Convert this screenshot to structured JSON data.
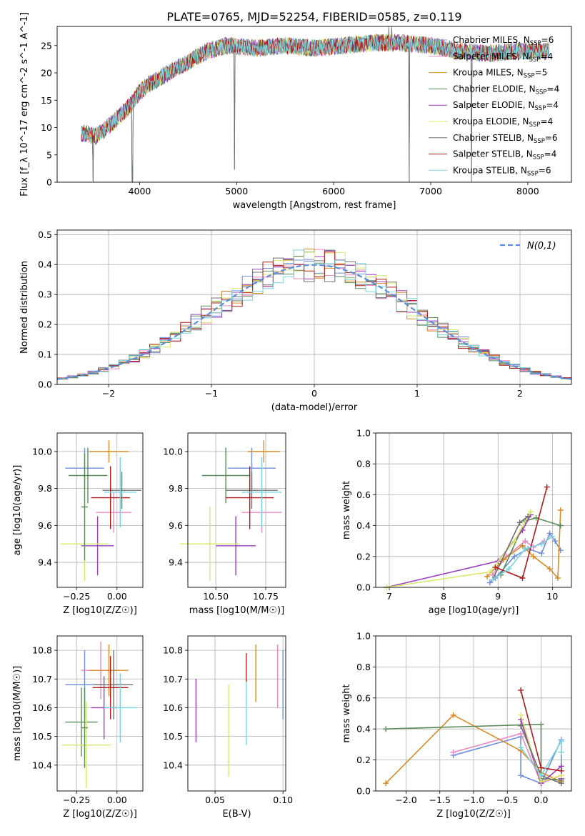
{
  "title": "PLATE=0765, MJD=52254, FIBERID=0585, z=0.119",
  "legend_models": [
    {
      "name": "Chabrier MILES",
      "nssp": "6",
      "color": "#6f8fdc"
    },
    {
      "name": "Salpeter MILES",
      "nssp": "4",
      "color": "#e889c4"
    },
    {
      "name": "Kroupa MILES",
      "nssp": "5",
      "color": "#d98b26"
    },
    {
      "name": "Chabrier ELODIE",
      "nssp": "4",
      "color": "#5b8a5b"
    },
    {
      "name": "Salpeter ELODIE",
      "nssp": "4",
      "color": "#9b3fbf"
    },
    {
      "name": "Kroupa ELODIE",
      "nssp": "4",
      "color": "#d9e86a"
    },
    {
      "name": "Chabrier STELIB",
      "nssp": "6",
      "color": "#707070"
    },
    {
      "name": "Salpeter STELIB",
      "nssp": "4",
      "color": "#b01c1c"
    },
    {
      "name": "Kroupa STELIB",
      "nssp": "6",
      "color": "#79d4e0"
    }
  ],
  "chart_data": [
    {
      "id": "spectrum",
      "type": "line",
      "xlabel": "wavelength [Angstrom, rest frame]",
      "ylabel": "Flux [f_λ 10^-17 erg cm^-2 s^-1 A^-1]",
      "xlim": [
        3150,
        8450
      ],
      "ylim": [
        0,
        28.5
      ],
      "xticks": [
        4000,
        5000,
        6000,
        7000,
        8000
      ],
      "yticks": [
        0,
        5,
        10,
        15,
        20,
        25
      ],
      "grid": false,
      "legend_position": "right",
      "continuum": {
        "x": [
          3400,
          3550,
          3700,
          3900,
          4000,
          4100,
          4300,
          4500,
          4700,
          4900,
          5200,
          5500,
          5800,
          6100,
          6400,
          6700,
          7000,
          7300,
          7600,
          7900,
          8200
        ],
        "y": [
          9,
          8.5,
          10.5,
          14,
          16.5,
          18,
          20,
          22,
          24,
          25,
          24.5,
          25,
          24.5,
          25,
          25.5,
          25.5,
          25,
          24,
          23.5,
          24,
          24
        ]
      },
      "x_range": [
        3400,
        8220
      ],
      "drops": [
        {
          "x": 3520,
          "y": 0
        },
        {
          "x": 3925,
          "y": 0
        },
        {
          "x": 4980,
          "y": 2.3
        },
        {
          "x": 6780,
          "y": 0
        },
        {
          "x": 7420,
          "y": 0
        }
      ],
      "spikes": [
        {
          "x": 6570,
          "y": 28.5
        },
        {
          "x": 6600,
          "y": 28.5
        }
      ]
    },
    {
      "id": "residuals",
      "type": "histogram",
      "xlabel": "(data-model)/error",
      "ylabel": "Normed distribution",
      "xlim": [
        -2.5,
        2.5
      ],
      "ylim": [
        0,
        0.515
      ],
      "xticks": [
        -2,
        -1,
        0,
        1,
        2
      ],
      "xtick_labels": [
        "−2",
        "−1",
        "0",
        "1",
        "2"
      ],
      "yticks": [
        0,
        0.1,
        0.2,
        0.3,
        0.4,
        0.5
      ],
      "ytick_labels": [
        "0.0",
        "0.1",
        "0.2",
        "0.3",
        "0.4",
        "0.5"
      ],
      "grid": true,
      "bin_width": 0.1,
      "reference": {
        "label": "N(0,1)",
        "color": "#5b8bd9",
        "mu": 0,
        "sigma": 1
      },
      "legend_position": "upper right"
    },
    {
      "id": "age_vs_Z",
      "type": "errorbar",
      "xlabel": "Z [log10(Z/Z☉)]",
      "ylabel": "age [log10(age/yr)]",
      "xlim": [
        -0.37,
        0.16
      ],
      "ylim": [
        9.265,
        10.1
      ],
      "xticks": [
        -0.25,
        0
      ],
      "xtick_labels": [
        "−0.25",
        "0.00"
      ],
      "yticks": [
        9.4,
        9.6,
        9.8,
        10.0
      ],
      "ytick_labels": [
        "9.4",
        "9.6",
        "9.8",
        "10.0"
      ],
      "grid": true,
      "points": [
        {
          "x": -0.2,
          "xerr": 0.12,
          "y": 9.91,
          "yerr": 0.11,
          "color": "#6f8fdc"
        },
        {
          "x": -0.02,
          "xerr": 0.11,
          "y": 9.67,
          "yerr": 0.11,
          "color": "#e889c4"
        },
        {
          "x": -0.05,
          "xerr": 0.12,
          "y": 10.0,
          "yerr": 0.06,
          "color": "#d98b26"
        },
        {
          "x": -0.18,
          "xerr": 0.12,
          "y": 9.87,
          "yerr": 0.15,
          "color": "#5b8a5b"
        },
        {
          "x": -0.12,
          "xerr": 0.1,
          "y": 9.49,
          "yerr": 0.16,
          "color": "#9b3fbf"
        },
        {
          "x": -0.2,
          "xerr": 0.15,
          "y": 9.5,
          "yerr": 0.2,
          "color": "#d9e86a"
        },
        {
          "x": 0.03,
          "xerr": 0.12,
          "y": 9.79,
          "yerr": 0.1,
          "color": "#707070"
        },
        {
          "x": -0.04,
          "xerr": 0.12,
          "y": 9.75,
          "yerr": 0.17,
          "color": "#b01c1c"
        },
        {
          "x": 0.02,
          "xerr": 0.1,
          "y": 9.78,
          "yerr": 0.19,
          "color": "#79d4e0"
        },
        {
          "x": -0.2,
          "xerr": 0.02,
          "y": 9.7,
          "yerr": 0.29,
          "color": "#5b8a5b"
        }
      ]
    },
    {
      "id": "age_vs_mass",
      "type": "errorbar",
      "xlabel": "mass [log10(M/M☉)]",
      "ylabel": "",
      "xlim": [
        10.36,
        10.85
      ],
      "ylim": [
        9.265,
        10.1
      ],
      "xticks": [
        10.5,
        10.75
      ],
      "xtick_labels": [
        "10.50",
        "10.75"
      ],
      "yticks": [
        9.4,
        9.6,
        9.8,
        10.0
      ],
      "ytick_labels": [
        "9.4",
        "9.6",
        "9.8",
        "10.0"
      ],
      "grid": true,
      "points": [
        {
          "x": 10.68,
          "xerr": 0.12,
          "y": 9.91,
          "yerr": 0.11,
          "color": "#6f8fdc"
        },
        {
          "x": 10.73,
          "xerr": 0.1,
          "y": 9.67,
          "yerr": 0.11,
          "color": "#e889c4"
        },
        {
          "x": 10.74,
          "xerr": 0.08,
          "y": 10.0,
          "yerr": 0.06,
          "color": "#d98b26"
        },
        {
          "x": 10.55,
          "xerr": 0.12,
          "y": 9.87,
          "yerr": 0.15,
          "color": "#5b8a5b"
        },
        {
          "x": 10.6,
          "xerr": 0.1,
          "y": 9.49,
          "yerr": 0.16,
          "color": "#9b3fbf"
        },
        {
          "x": 10.47,
          "xerr": 0.15,
          "y": 9.5,
          "yerr": 0.2,
          "color": "#d9e86a"
        },
        {
          "x": 10.68,
          "xerr": 0.13,
          "y": 9.79,
          "yerr": 0.1,
          "color": "#707070"
        },
        {
          "x": 10.67,
          "xerr": 0.12,
          "y": 9.75,
          "yerr": 0.17,
          "color": "#b01c1c"
        },
        {
          "x": 10.73,
          "xerr": 0.1,
          "y": 9.78,
          "yerr": 0.19,
          "color": "#79d4e0"
        }
      ]
    },
    {
      "id": "weight_vs_age",
      "type": "line",
      "xlabel": "age [log10(age/yr)]",
      "ylabel": "mass weight",
      "xlim": [
        6.75,
        10.35
      ],
      "ylim": [
        0,
        1.0
      ],
      "xticks": [
        7,
        8,
        9,
        10
      ],
      "xtick_labels": [
        "7",
        "8",
        "9",
        "10"
      ],
      "yticks": [
        0,
        0.2,
        0.4,
        0.6,
        0.8,
        1.0
      ],
      "ytick_labels": [
        "0.0",
        "0.2",
        "0.4",
        "0.6",
        "0.8",
        "1.0"
      ],
      "grid": true,
      "series": [
        {
          "color": "#6f8fdc",
          "x": [
            8.85,
            8.95,
            9.3,
            9.55,
            9.8,
            9.95,
            10.05,
            10.15
          ],
          "y": [
            0.03,
            0.06,
            0.2,
            0.25,
            0.22,
            0.35,
            0.3,
            0.24
          ]
        },
        {
          "color": "#e889c4",
          "x": [
            8.9,
            9.15,
            9.5,
            9.65,
            9.85
          ],
          "y": [
            0.08,
            0.2,
            0.3,
            0.26,
            0.3
          ]
        },
        {
          "color": "#d98b26",
          "x": [
            8.8,
            9.1,
            9.45,
            9.65,
            9.95,
            10.1,
            10.15
          ],
          "y": [
            0.07,
            0.18,
            0.27,
            0.2,
            0.12,
            0.06,
            0.5
          ]
        },
        {
          "color": "#5b8a5b",
          "x": [
            9.05,
            9.5,
            9.7,
            10.15
          ],
          "y": [
            0.08,
            0.43,
            0.45,
            0.4
          ]
        },
        {
          "color": "#9b3fbf",
          "x": [
            6.95,
            9.0,
            9.45,
            9.6
          ],
          "y": [
            0.0,
            0.17,
            0.37,
            0.47
          ]
        },
        {
          "color": "#d9e86a",
          "x": [
            6.95,
            8.85,
            9.3,
            9.6
          ],
          "y": [
            0.0,
            0.1,
            0.3,
            0.49
          ]
        },
        {
          "color": "#707070",
          "x": [
            8.9,
            9.4,
            9.55
          ],
          "y": [
            0.05,
            0.42,
            0.46
          ]
        },
        {
          "color": "#b01c1c",
          "x": [
            8.95,
            9.45,
            9.9
          ],
          "y": [
            0.13,
            0.06,
            0.65
          ]
        },
        {
          "color": "#79d4e0",
          "x": [
            8.9,
            9.2,
            9.5,
            9.8,
            10.0
          ],
          "y": [
            0.05,
            0.12,
            0.25,
            0.28,
            0.33
          ]
        }
      ]
    },
    {
      "id": "mass_vs_Z",
      "type": "errorbar",
      "xlabel": "Z [log10(Z/Z☉)]",
      "ylabel": "mass [log10(M/M☉)]",
      "xlim": [
        -0.37,
        0.16
      ],
      "ylim": [
        10.31,
        10.85
      ],
      "xticks": [
        -0.25,
        0
      ],
      "xtick_labels": [
        "−0.25",
        "0.00"
      ],
      "yticks": [
        10.4,
        10.5,
        10.6,
        10.7,
        10.8
      ],
      "ytick_labels": [
        "10.4",
        "10.5",
        "10.6",
        "10.7",
        "10.8"
      ],
      "grid": true,
      "points": [
        {
          "x": -0.2,
          "xerr": 0.12,
          "y": 10.68,
          "yerr": 0.12,
          "color": "#6f8fdc"
        },
        {
          "x": -0.1,
          "xerr": 0.12,
          "y": 10.73,
          "yerr": 0.1,
          "color": "#e889c4"
        },
        {
          "x": -0.05,
          "xerr": 0.12,
          "y": 10.73,
          "yerr": 0.09,
          "color": "#d98b26"
        },
        {
          "x": -0.22,
          "xerr": 0.1,
          "y": 10.55,
          "yerr": 0.12,
          "color": "#5b8a5b"
        },
        {
          "x": -0.08,
          "xerr": 0.08,
          "y": 10.6,
          "yerr": 0.11,
          "color": "#9b3fbf"
        },
        {
          "x": -0.19,
          "xerr": 0.15,
          "y": 10.47,
          "yerr": 0.15,
          "color": "#d9e86a"
        },
        {
          "x": -0.02,
          "xerr": 0.12,
          "y": 10.68,
          "yerr": 0.12,
          "color": "#707070"
        },
        {
          "x": -0.04,
          "xerr": 0.11,
          "y": 10.67,
          "yerr": 0.11,
          "color": "#b01c1c"
        },
        {
          "x": 0.02,
          "xerr": 0.1,
          "y": 10.6,
          "yerr": 0.12,
          "color": "#79d4e0"
        },
        {
          "x": -0.2,
          "xerr": 0.02,
          "y": 10.53,
          "yerr": 0.14,
          "color": "#5b8a5b"
        }
      ]
    },
    {
      "id": "mass_vs_ebv",
      "type": "errorbar",
      "xlabel": "E(B-V)",
      "ylabel": "",
      "xlim": [
        0.03,
        0.102
      ],
      "ylim": [
        10.31,
        10.85
      ],
      "xticks": [
        0.05,
        0.1
      ],
      "xtick_labels": [
        "0.05",
        "0.10"
      ],
      "yticks": [
        10.4,
        10.5,
        10.6,
        10.7,
        10.8
      ],
      "ytick_labels": [
        "10.4",
        "10.5",
        "10.6",
        "10.7",
        "10.8"
      ],
      "grid": true,
      "points": [
        {
          "x": 0.036,
          "xerr": 0,
          "y": 10.59,
          "yerr": 0.11,
          "color": "#9b3fbf"
        },
        {
          "x": 0.06,
          "xerr": 0,
          "y": 10.52,
          "yerr": 0.16,
          "color": "#d9e86a"
        },
        {
          "x": 0.073,
          "xerr": 0,
          "y": 10.74,
          "yerr": 0.05,
          "color": "#b01c1c"
        },
        {
          "x": 0.073,
          "xerr": 0,
          "y": 10.58,
          "yerr": 0.11,
          "color": "#79d4e0"
        },
        {
          "x": 0.08,
          "xerr": 0,
          "y": 10.72,
          "yerr": 0.1,
          "color": "#d98b26"
        },
        {
          "x": 0.096,
          "xerr": 0,
          "y": 10.71,
          "yerr": 0.11,
          "color": "#e889c4"
        },
        {
          "x": 0.1,
          "xerr": 0,
          "y": 10.68,
          "yerr": 0.12,
          "color": "#6f8fdc"
        }
      ]
    },
    {
      "id": "weight_vs_Z",
      "type": "line",
      "xlabel": "Z [log10(Z/Z☉)]",
      "ylabel": "mass weight",
      "xlim": [
        -2.45,
        0.45
      ],
      "ylim": [
        0,
        1.0
      ],
      "xticks": [
        -2,
        -1.5,
        -1,
        -0.5,
        0
      ],
      "xtick_labels": [
        "−2.0",
        "−1.5",
        "−1.0",
        "−0.5",
        "0.0"
      ],
      "yticks": [
        0,
        0.2,
        0.4,
        0.6,
        0.8,
        1.0
      ],
      "ytick_labels": [
        "0.0",
        "0.2",
        "0.4",
        "0.6",
        "0.8",
        "1.0"
      ],
      "grid": true,
      "series": [
        {
          "color": "#6f8fdc",
          "x": [
            -1.3,
            -0.3,
            -0.3,
            0,
            0.3,
            0.3
          ],
          "y": [
            0.23,
            0.35,
            0.1,
            0.05,
            0.33,
            0.06
          ]
        },
        {
          "color": "#e889c4",
          "x": [
            -1.3,
            -0.3,
            0,
            0.3
          ],
          "y": [
            0.25,
            0.37,
            0.05,
            0.1
          ]
        },
        {
          "color": "#d98b26",
          "x": [
            -2.3,
            -1.3,
            -0.3,
            0,
            0.3
          ],
          "y": [
            0.05,
            0.49,
            0.26,
            0.12,
            0.06
          ]
        },
        {
          "color": "#5b8a5b",
          "x": [
            -2.3,
            0,
            0,
            0.3
          ],
          "y": [
            0.4,
            0.43,
            0.08,
            0.07
          ]
        },
        {
          "color": "#9b3fbf",
          "x": [
            -0.3,
            0,
            0.3,
            0.3
          ],
          "y": [
            0.46,
            0.05,
            0.16,
            0.08
          ]
        },
        {
          "color": "#d9e86a",
          "x": [
            -0.3,
            0,
            0.3
          ],
          "y": [
            0.49,
            0.06,
            0.1
          ]
        },
        {
          "color": "#707070",
          "x": [
            -0.3,
            0,
            0.3
          ],
          "y": [
            0.42,
            0.1,
            0.05
          ]
        },
        {
          "color": "#b01c1c",
          "x": [
            -0.3,
            0,
            0.3
          ],
          "y": [
            0.65,
            0.15,
            0.13
          ]
        },
        {
          "color": "#79d4e0",
          "x": [
            -0.3,
            0,
            0.3,
            0.3
          ],
          "y": [
            0.28,
            0.1,
            0.32,
            0.25
          ]
        }
      ]
    }
  ]
}
